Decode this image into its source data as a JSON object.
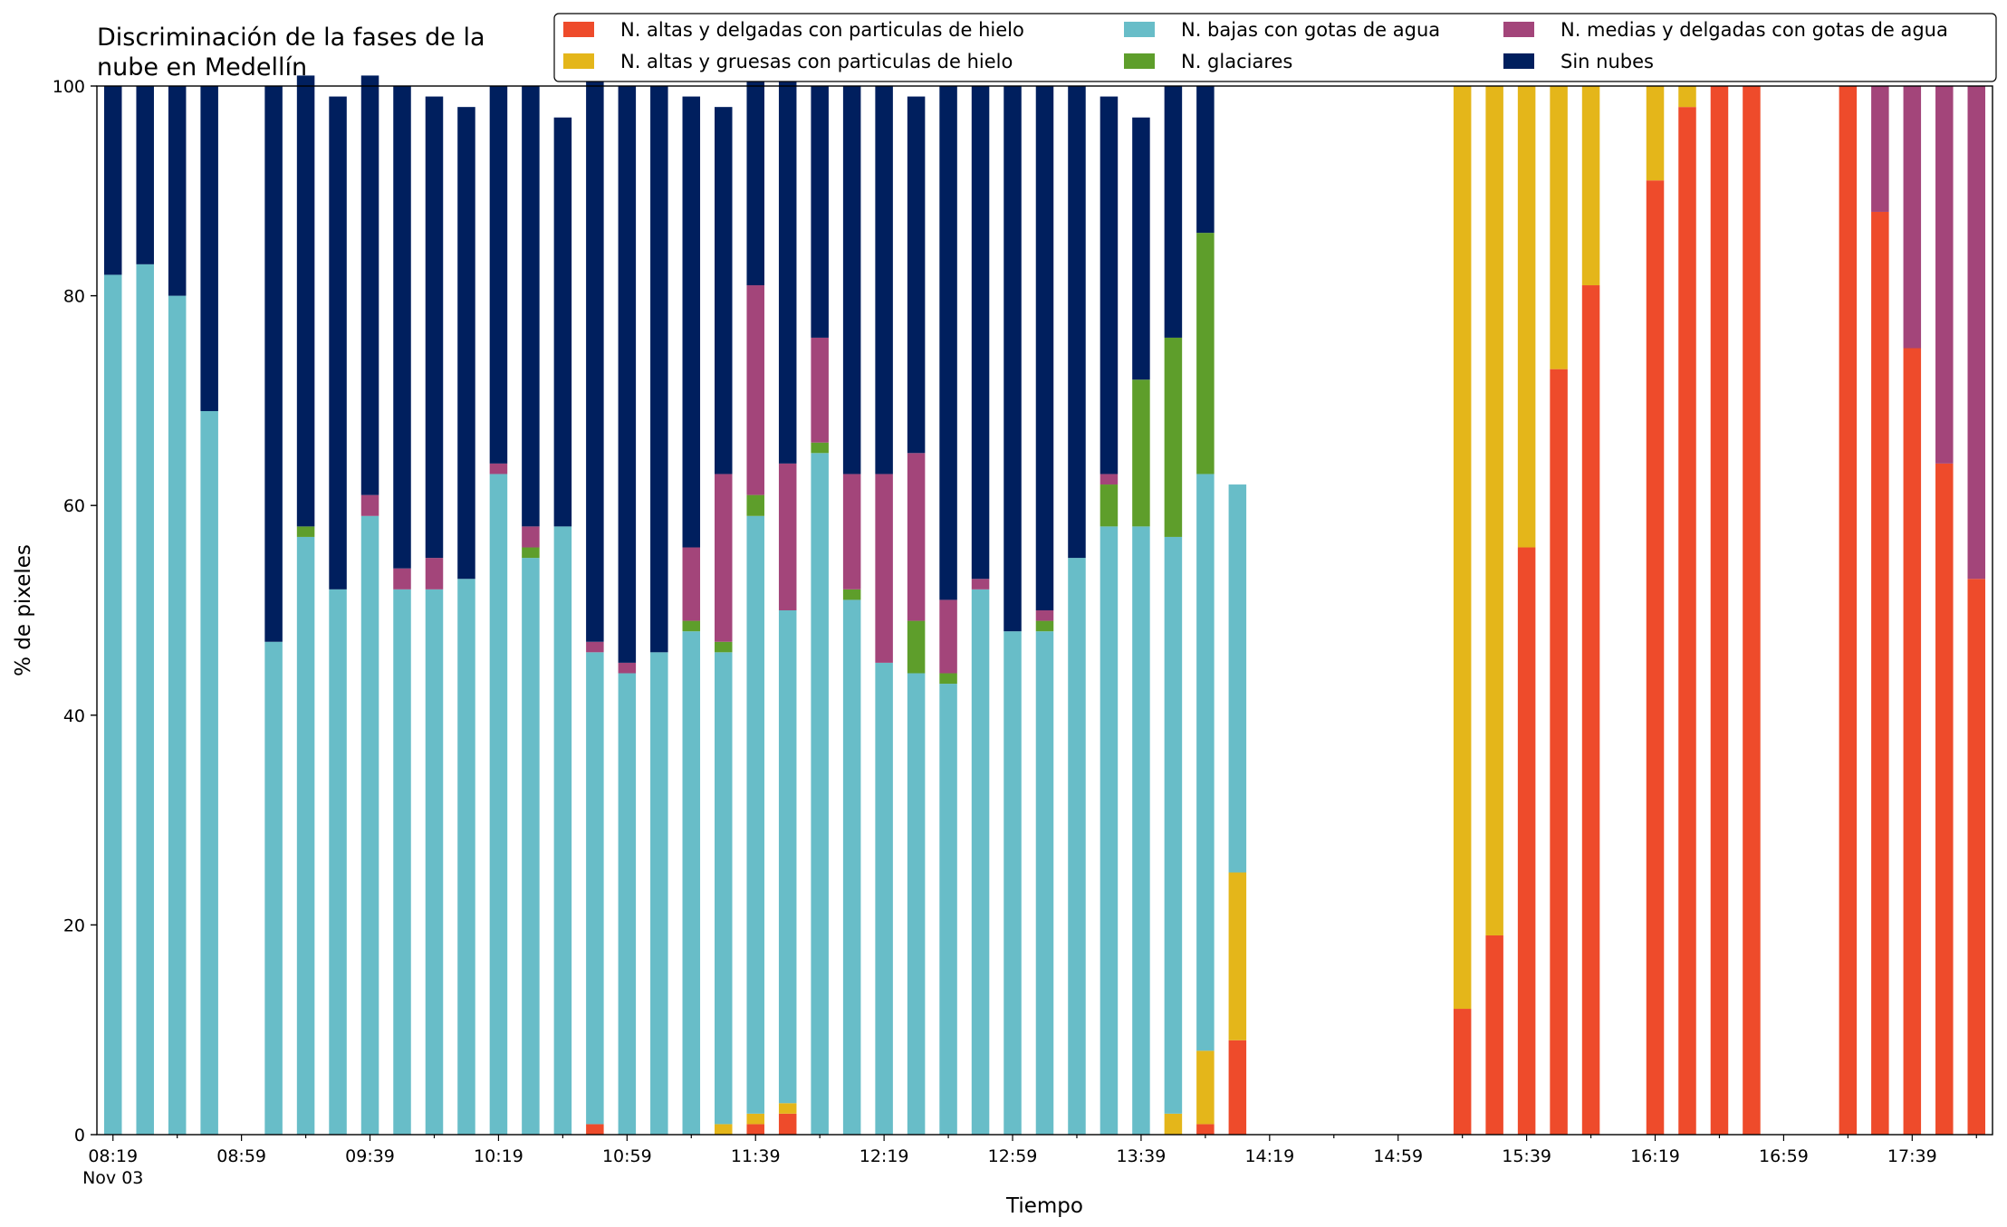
{
  "colors": {
    "high_thin_ice": "#EE4B2B",
    "high_thick_ice": "#E4B61A",
    "low_water": "#68BDC8",
    "glaciated": "#5E9E2B",
    "mid_thin_water": "#A3457A",
    "clear": "#001F5E"
  },
  "chart_data": {
    "type": "bar",
    "stacked": true,
    "title_lines": [
      "Discriminación de la fases de la",
      "nube en Medellín"
    ],
    "xlabel": "Tiempo",
    "ylabel": "% de pixeles",
    "ylim": [
      0,
      100
    ],
    "yticks": [
      0,
      20,
      40,
      60,
      80,
      100
    ],
    "grid": false,
    "legend_position": "top-right",
    "x_range": [
      "08:14",
      "18:04"
    ],
    "x_tick_labels": [
      "08:19",
      "08:59",
      "09:39",
      "10:19",
      "10:59",
      "11:39",
      "12:19",
      "12:59",
      "13:39",
      "14:19",
      "14:59",
      "15:39",
      "16:19",
      "16:59",
      "17:39"
    ],
    "x_tick_sublabel": "Nov 03",
    "x": [
      "08:19",
      "08:29",
      "08:39",
      "08:49",
      "09:09",
      "09:19",
      "09:29",
      "09:39",
      "09:49",
      "09:59",
      "10:09",
      "10:19",
      "10:29",
      "10:39",
      "10:49",
      "10:59",
      "11:09",
      "11:19",
      "11:29",
      "11:39",
      "11:49",
      "11:59",
      "12:09",
      "12:19",
      "12:29",
      "12:39",
      "12:49",
      "12:59",
      "13:09",
      "13:19",
      "13:29",
      "13:39",
      "13:49",
      "13:59",
      "14:09",
      "15:19",
      "15:29",
      "15:39",
      "15:49",
      "15:59",
      "16:19",
      "16:29",
      "16:39",
      "16:49",
      "17:19",
      "17:29",
      "17:39",
      "17:49",
      "17:59"
    ],
    "series": [
      {
        "name": "N. altas y delgadas con particulas de hielo",
        "color_key": "high_thin_ice",
        "values": [
          0,
          0,
          0,
          0,
          0,
          0,
          0,
          0,
          0,
          0,
          0,
          0,
          0,
          0,
          1,
          0,
          0,
          0,
          0,
          1,
          2,
          0,
          0,
          0,
          0,
          0,
          0,
          0,
          0,
          0,
          0,
          0,
          0,
          1,
          9,
          12,
          19,
          56,
          73,
          81,
          91,
          98,
          100,
          100,
          100,
          88,
          75,
          64,
          53
        ]
      },
      {
        "name": "N. altas y gruesas con particulas de hielo",
        "color_key": "high_thick_ice",
        "values": [
          0,
          0,
          0,
          0,
          0,
          0,
          0,
          0,
          0,
          0,
          0,
          0,
          0,
          0,
          0,
          0,
          0,
          0,
          1,
          1,
          1,
          0,
          0,
          0,
          0,
          0,
          0,
          0,
          0,
          0,
          0,
          0,
          2,
          7,
          16,
          88,
          81,
          44,
          27,
          19,
          9,
          2,
          0,
          0,
          0,
          0,
          0,
          0,
          0
        ]
      },
      {
        "name": "N. bajas con gotas de agua",
        "color_key": "low_water",
        "values": [
          82,
          83,
          80,
          69,
          47,
          57,
          52,
          59,
          52,
          52,
          53,
          63,
          55,
          58,
          45,
          44,
          46,
          48,
          45,
          57,
          47,
          65,
          51,
          45,
          44,
          43,
          52,
          48,
          48,
          55,
          58,
          58,
          55,
          55,
          37,
          0,
          0,
          0,
          0,
          0,
          0,
          0,
          0,
          0,
          0,
          0,
          0,
          0,
          0
        ]
      },
      {
        "name": "N. glaciares",
        "color_key": "glaciated",
        "values": [
          0,
          0,
          0,
          0,
          0,
          1,
          0,
          0,
          0,
          0,
          0,
          0,
          1,
          0,
          0,
          0,
          0,
          1,
          1,
          2,
          0,
          1,
          1,
          0,
          5,
          1,
          0,
          0,
          1,
          0,
          4,
          14,
          19,
          23,
          0,
          0,
          0,
          0,
          0,
          0,
          0,
          0,
          0,
          0,
          0,
          0,
          0,
          0,
          0
        ]
      },
      {
        "name": "N. medias y delgadas con gotas de agua",
        "color_key": "mid_thin_water",
        "values": [
          0,
          0,
          0,
          0,
          0,
          0,
          0,
          2,
          2,
          3,
          0,
          1,
          2,
          0,
          1,
          1,
          0,
          7,
          16,
          20,
          14,
          10,
          11,
          18,
          16,
          7,
          1,
          0,
          1,
          0,
          1,
          0,
          0,
          0,
          0,
          0,
          0,
          0,
          0,
          0,
          0,
          0,
          0,
          0,
          0,
          12,
          25,
          36,
          47
        ]
      },
      {
        "name": "Sin nubes",
        "color_key": "clear",
        "values": [
          18,
          17,
          20,
          31,
          53,
          43,
          47,
          40,
          46,
          44,
          45,
          36,
          42,
          39,
          54,
          55,
          54,
          43,
          35,
          21,
          37,
          24,
          37,
          37,
          34,
          49,
          47,
          52,
          50,
          45,
          36,
          25,
          24,
          14,
          0,
          0,
          0,
          0,
          0,
          0,
          0,
          0,
          0,
          0,
          0,
          0,
          0,
          0,
          0
        ]
      }
    ]
  }
}
